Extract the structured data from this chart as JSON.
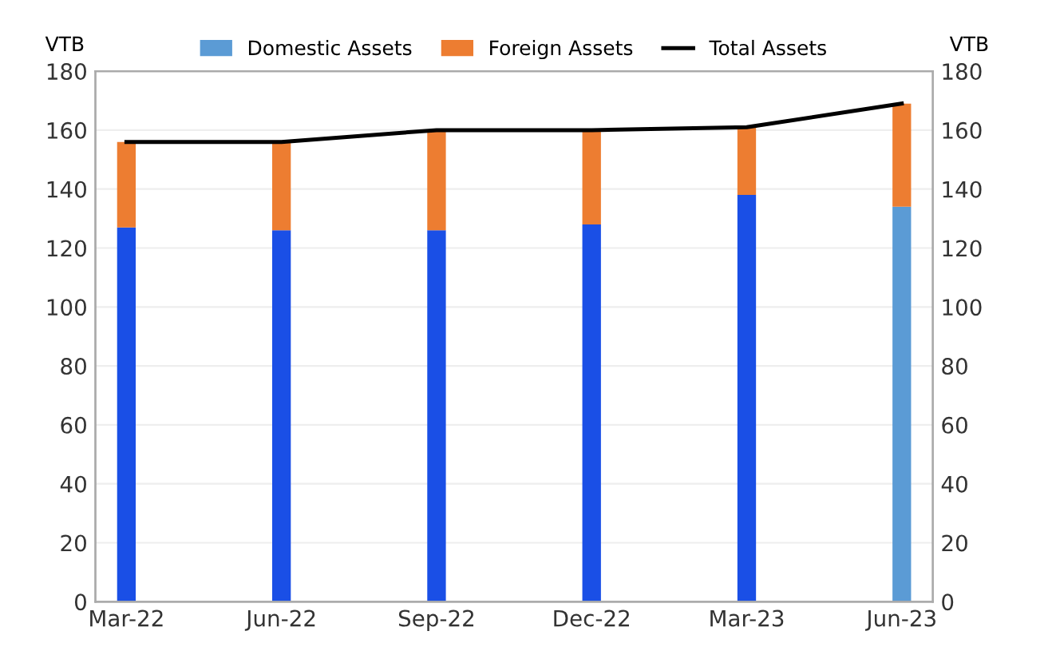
{
  "chart_data": {
    "type": "bar",
    "stacked": true,
    "ylabel": "VTB",
    "y2label": "VTB",
    "categories": [
      "Mar-22",
      "Jun-22",
      "Sep-22",
      "Dec-22",
      "Mar-23",
      "Jun-23"
    ],
    "series": [
      {
        "name": "Domestic Assets",
        "color": "#5b9bd5",
        "colors": [
          "#1a4fe6",
          "#1a4fe6",
          "#1a4fe6",
          "#1a4fe6",
          "#1a4fe6",
          "#5b9bd5"
        ],
        "values": [
          127,
          126,
          126,
          128,
          138,
          134
        ]
      },
      {
        "name": "Foreign Assets",
        "color": "#ed7d31",
        "values": [
          29,
          30,
          34,
          32,
          23,
          35
        ]
      },
      {
        "name": "Total Assets",
        "type": "line",
        "color": "#000000",
        "values": [
          156,
          156,
          160,
          160,
          161,
          169
        ]
      }
    ],
    "ylim": [
      0,
      180
    ],
    "yticks": [
      0,
      20,
      40,
      60,
      80,
      100,
      120,
      140,
      160,
      180
    ],
    "y2lim": [
      0,
      180
    ],
    "y2ticks": [
      0,
      20,
      40,
      60,
      80,
      100,
      120,
      140,
      160,
      180
    ],
    "grid": "y",
    "legend": "top"
  }
}
